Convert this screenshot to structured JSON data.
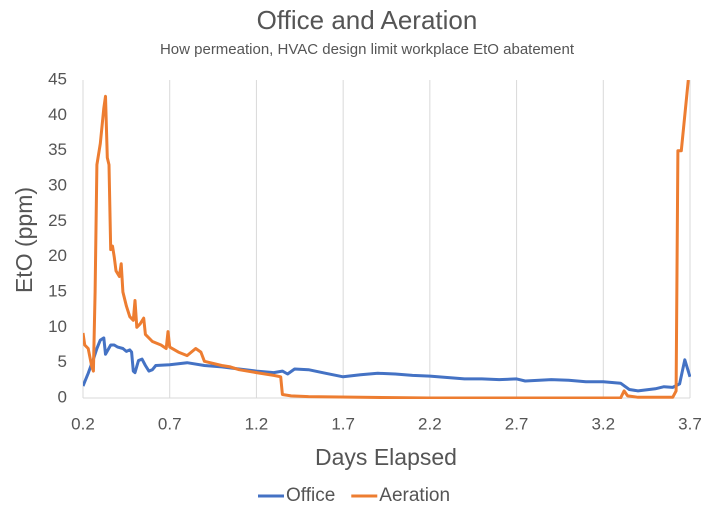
{
  "chart_data": {
    "type": "line",
    "title": "Office and Aeration",
    "subtitle": "How permeation, HVAC design limit workplace EtO abatement",
    "x_label": "Days Elapsed",
    "y_label": "EtO (ppm)",
    "xlim": [
      0.2,
      3.7
    ],
    "ylim": [
      0,
      45
    ],
    "xticks": [
      0.2,
      0.7,
      1.2,
      1.7,
      2.2,
      2.7,
      3.2,
      3.7
    ],
    "yticks": [
      0,
      5,
      10,
      15,
      20,
      25,
      30,
      35,
      40,
      45
    ],
    "grid": "x",
    "legend": "bottom",
    "series": [
      {
        "name": "Office",
        "color": "#4472c4",
        "x": [
          0.2,
          0.23,
          0.26,
          0.28,
          0.3,
          0.32,
          0.33,
          0.36,
          0.38,
          0.4,
          0.43,
          0.45,
          0.47,
          0.48,
          0.49,
          0.5,
          0.52,
          0.54,
          0.56,
          0.58,
          0.6,
          0.62,
          0.7,
          0.8,
          0.9,
          1.0,
          1.1,
          1.2,
          1.3,
          1.35,
          1.38,
          1.42,
          1.5,
          1.6,
          1.7,
          1.8,
          1.9,
          2.0,
          2.1,
          2.2,
          2.3,
          2.4,
          2.5,
          2.6,
          2.7,
          2.75,
          2.9,
          3.0,
          3.1,
          3.2,
          3.3,
          3.35,
          3.4,
          3.5,
          3.55,
          3.6,
          3.64,
          3.67,
          3.7
        ],
        "values": [
          1.7,
          3.5,
          5.5,
          7,
          8.2,
          8.5,
          6.2,
          7.5,
          7.5,
          7.2,
          7,
          6.6,
          6.8,
          6.5,
          3.8,
          3.6,
          5.3,
          5.5,
          4.6,
          3.8,
          4,
          4.6,
          4.7,
          5,
          4.6,
          4.4,
          4.1,
          3.8,
          3.6,
          3.8,
          3.4,
          4.1,
          4,
          3.5,
          3,
          3.3,
          3.5,
          3.4,
          3.2,
          3.1,
          2.9,
          2.7,
          2.7,
          2.6,
          2.7,
          2.4,
          2.6,
          2.5,
          2.3,
          2.3,
          2.1,
          1.2,
          1,
          1.3,
          1.6,
          1.5,
          2,
          5.4,
          3
        ]
      },
      {
        "name": "Aeration",
        "color": "#ed7d31",
        "x": [
          0.2,
          0.21,
          0.23,
          0.25,
          0.26,
          0.27,
          0.28,
          0.3,
          0.32,
          0.33,
          0.34,
          0.35,
          0.36,
          0.37,
          0.38,
          0.39,
          0.41,
          0.42,
          0.43,
          0.45,
          0.47,
          0.49,
          0.5,
          0.51,
          0.53,
          0.55,
          0.56,
          0.6,
          0.65,
          0.68,
          0.69,
          0.7,
          0.75,
          0.8,
          0.85,
          0.88,
          0.9,
          1.0,
          1.05,
          1.1,
          1.2,
          1.3,
          1.34,
          1.35,
          1.4,
          1.5,
          1.8,
          2.2,
          3.0,
          3.3,
          3.32,
          3.34,
          3.4,
          3.6,
          3.62,
          3.63,
          3.65,
          3.69
        ],
        "values": [
          9.2,
          7.5,
          7,
          4.5,
          3.8,
          15,
          33,
          36,
          41,
          42.7,
          34,
          33,
          21,
          21.5,
          20,
          18,
          17.2,
          19,
          15,
          13,
          11.5,
          11,
          13.8,
          10,
          10.5,
          11.3,
          9,
          8,
          7.5,
          7,
          9.4,
          7.2,
          6.5,
          6,
          7,
          6.5,
          5.2,
          4.6,
          4.4,
          4,
          3.6,
          3.2,
          3,
          0.5,
          0.3,
          0.2,
          0.1,
          0,
          0,
          0,
          1,
          0.3,
          0.1,
          0.1,
          1,
          35,
          35,
          45
        ]
      }
    ]
  }
}
